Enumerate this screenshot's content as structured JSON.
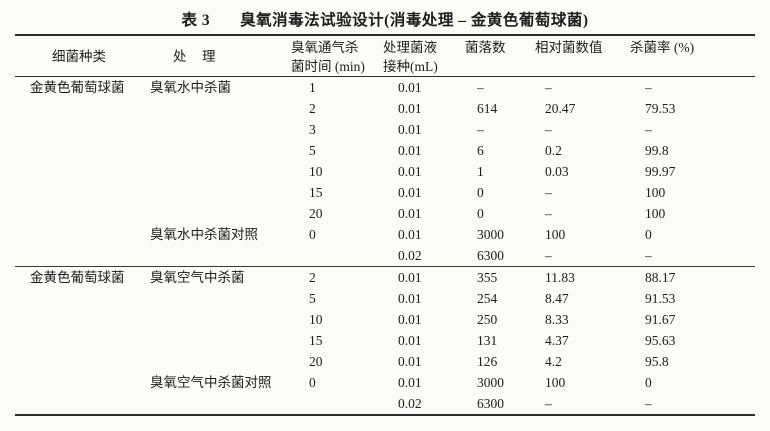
{
  "title": {
    "label": "表 3",
    "text": "臭氧消毒法试验设计(消毒处理 – 金黄色葡萄球菌)"
  },
  "colors": {
    "paper": "#fbfbf8",
    "ink": "#1d1d1d",
    "rule": "#2c2c2c"
  },
  "table": {
    "headers": [
      {
        "id": "species",
        "lines": [
          "细菌种类"
        ]
      },
      {
        "id": "treatment",
        "lines": [
          "处　理"
        ]
      },
      {
        "id": "ozone-time",
        "lines": [
          "臭氧通气杀",
          "菌时间 (min)"
        ]
      },
      {
        "id": "inoculation",
        "lines": [
          "处理菌液",
          "接种(mL)"
        ]
      },
      {
        "id": "colonies",
        "lines": [
          "菌落数"
        ]
      },
      {
        "id": "relative",
        "lines": [
          "相对菌数值"
        ]
      },
      {
        "id": "kill-rate",
        "lines": [
          "杀菌率 (%)"
        ]
      }
    ],
    "sections": [
      {
        "rows": [
          [
            "金黄色葡萄球菌",
            "臭氧水中杀菌",
            "1",
            "0.01",
            "–",
            "–",
            "–"
          ],
          [
            "",
            "",
            "2",
            "0.01",
            "614",
            "20.47",
            "79.53"
          ],
          [
            "",
            "",
            "3",
            "0.01",
            "–",
            "–",
            "–"
          ],
          [
            "",
            "",
            "5",
            "0.01",
            "6",
            "0.2",
            "99.8"
          ],
          [
            "",
            "",
            "10",
            "0.01",
            "1",
            "0.03",
            "99.97"
          ],
          [
            "",
            "",
            "15",
            "0.01",
            "0",
            "–",
            "100"
          ],
          [
            "",
            "",
            "20",
            "0.01",
            "0",
            "–",
            "100"
          ],
          [
            "",
            "臭氧水中杀菌对照",
            "0",
            "0.01",
            "3000",
            "100",
            "0"
          ],
          [
            "",
            "",
            "",
            "0.02",
            "6300",
            "–",
            "–"
          ]
        ]
      },
      {
        "rows": [
          [
            "金黄色葡萄球菌",
            "臭氧空气中杀菌",
            "2",
            "0.01",
            "355",
            "11.83",
            "88.17"
          ],
          [
            "",
            "",
            "5",
            "0.01",
            "254",
            "8.47",
            "91.53"
          ],
          [
            "",
            "",
            "10",
            "0.01",
            "250",
            "8.33",
            "91.67"
          ],
          [
            "",
            "",
            "15",
            "0.01",
            "131",
            "4.37",
            "95.63"
          ],
          [
            "",
            "",
            "20",
            "0.01",
            "126",
            "4.2",
            "95.8"
          ],
          [
            "",
            "臭氧空气中杀菌对照",
            "0",
            "0.01",
            "3000",
            "100",
            "0"
          ],
          [
            "",
            "",
            "",
            "0.02",
            "6300",
            "–",
            "–"
          ]
        ]
      }
    ]
  }
}
